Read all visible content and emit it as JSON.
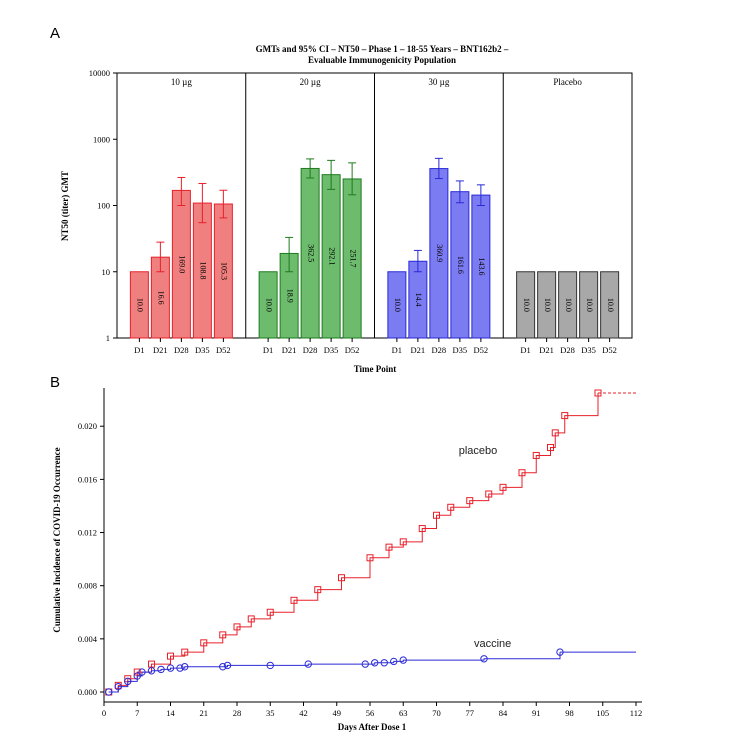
{
  "chart_data": [
    {
      "panel": "A",
      "type": "bar",
      "title": "GMTs and 95% CI – NT50 – Phase 1 – 18-55 Years – BNT162b2 –",
      "subtitle": "Evaluable Immunogenicity Population",
      "xlabel": "Time Point",
      "ylabel": "NT50 (titer) GMT",
      "yscale": "log",
      "ylim": [
        1,
        10000
      ],
      "yticks": [
        "1",
        "10",
        "100",
        "1000",
        "10000"
      ],
      "categories": [
        "D1",
        "D21",
        "D28",
        "D35",
        "D52"
      ],
      "facets": [
        {
          "name": "10 µg",
          "color": "#f08080",
          "edge": "#e8202a",
          "values": [
            10.0,
            16.6,
            169.0,
            108.8,
            105.3
          ],
          "labels": [
            "10.0",
            "16.6",
            "169.0",
            "108.8",
            "105.3"
          ],
          "ci_low": [
            10,
            10,
            100,
            55,
            65
          ],
          "ci_high": [
            10,
            28,
            265,
            215,
            170
          ]
        },
        {
          "name": "20 µg",
          "color": "#6dbb6d",
          "edge": "#1e7b1e",
          "values": [
            10.0,
            18.9,
            362.5,
            292.1,
            251.7
          ],
          "labels": [
            "10.0",
            "18.9",
            "362.5",
            "292.1",
            "251.7"
          ],
          "ci_low": [
            10,
            10,
            260,
            175,
            145
          ],
          "ci_high": [
            10,
            33,
            505,
            480,
            440
          ]
        },
        {
          "name": "30 µg",
          "color": "#7c7cf2",
          "edge": "#2828d8",
          "values": [
            10.0,
            14.4,
            360.9,
            161.6,
            143.6
          ],
          "labels": [
            "10.0",
            "14.4",
            "360.9",
            "161.6",
            "143.6"
          ],
          "ci_low": [
            10,
            10,
            255,
            110,
            100
          ],
          "ci_high": [
            10,
            21,
            515,
            235,
            205
          ]
        },
        {
          "name": "Placebo",
          "color": "#a8a8a8",
          "edge": "#333333",
          "values": [
            10.0,
            10.0,
            10.0,
            10.0,
            10.0
          ],
          "labels": [
            "10.0",
            "10.0",
            "10.0",
            "10.0",
            "10.0"
          ],
          "ci_low": [
            10,
            10,
            10,
            10,
            10
          ],
          "ci_high": [
            10,
            10,
            10,
            10,
            10
          ]
        }
      ]
    },
    {
      "panel": "B",
      "type": "line",
      "xlabel": "Days After Dose 1",
      "ylabel": "Cumulative Incidence of COVID-19 Occurrence",
      "xlim": [
        0,
        112
      ],
      "ylim": [
        0,
        0.0225
      ],
      "xticks": [
        "0",
        "7",
        "14",
        "21",
        "28",
        "35",
        "42",
        "49",
        "56",
        "63",
        "70",
        "77",
        "84",
        "91",
        "98",
        "105",
        "112"
      ],
      "yticks": [
        "0.000",
        "0.004",
        "0.008",
        "0.012",
        "0.016",
        "0.020"
      ],
      "series": [
        {
          "name": "placebo",
          "color": "#e8202a",
          "marker": "square",
          "x": [
            1,
            3,
            5,
            7,
            10,
            14,
            17,
            21,
            25,
            28,
            31,
            35,
            40,
            45,
            50,
            56,
            60,
            63,
            67,
            70,
            73,
            77,
            81,
            84,
            88,
            91,
            94,
            95,
            97,
            104,
            112
          ],
          "y": [
            0.0,
            0.0005,
            0.001,
            0.0015,
            0.0021,
            0.0027,
            0.003,
            0.0037,
            0.0043,
            0.0049,
            0.0055,
            0.006,
            0.0069,
            0.0077,
            0.0086,
            0.0101,
            0.0109,
            0.0113,
            0.0123,
            0.0133,
            0.0139,
            0.0144,
            0.0149,
            0.0154,
            0.0165,
            0.0178,
            0.0184,
            0.0195,
            0.0208,
            0.0225,
            0.0225
          ]
        },
        {
          "name": "vaccine",
          "color": "#2b2bd8",
          "marker": "circle",
          "x": [
            1,
            3,
            5,
            7,
            8,
            10,
            12,
            14,
            16,
            17,
            25,
            26,
            35,
            43,
            55,
            57,
            59,
            61,
            63,
            80,
            96,
            112
          ],
          "y": [
            0.0,
            0.0004,
            0.0008,
            0.0012,
            0.0015,
            0.0016,
            0.0017,
            0.0018,
            0.0018,
            0.0019,
            0.0019,
            0.002,
            0.002,
            0.0021,
            0.0021,
            0.0022,
            0.0022,
            0.0023,
            0.0024,
            0.0025,
            0.003,
            0.003
          ]
        }
      ]
    }
  ]
}
